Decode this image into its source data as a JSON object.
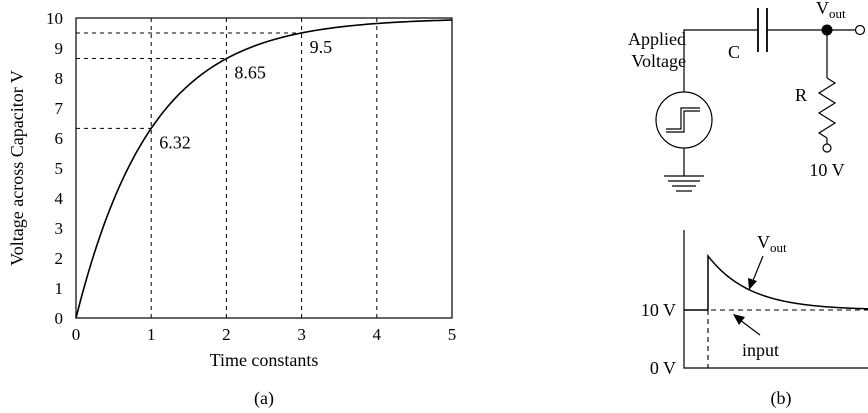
{
  "panel_a": {
    "caption": "(a)",
    "chart_data": {
      "type": "line",
      "xlabel": "Time constants",
      "ylabel": "Voltage across Capacitor V",
      "xlim": [
        0,
        5
      ],
      "ylim": [
        0,
        10
      ],
      "x_ticks": [
        "0",
        "1",
        "2",
        "3",
        "4",
        "5"
      ],
      "y_ticks": [
        "0",
        "1",
        "2",
        "3",
        "4",
        "5",
        "6",
        "7",
        "8",
        "9",
        "10"
      ],
      "grid": "dashed",
      "series": [
        {
          "function": "10*(1-exp(-t))",
          "x": [
            0,
            0.25,
            0.5,
            0.75,
            1,
            1.5,
            2,
            2.5,
            3,
            3.5,
            4,
            4.5,
            5
          ],
          "values": [
            0,
            2.21,
            3.93,
            5.28,
            6.32,
            7.77,
            8.65,
            9.18,
            9.5,
            9.7,
            9.82,
            9.89,
            9.93
          ]
        }
      ],
      "annotations": [
        {
          "text": "6.32",
          "x": 1,
          "y": 6.32
        },
        {
          "text": "8.65",
          "x": 2,
          "y": 8.65
        },
        {
          "text": "9.5",
          "x": 3,
          "y": 9.5
        }
      ]
    }
  },
  "panel_b": {
    "caption": "(b)",
    "circuit": {
      "source_label_line1": "Applied",
      "source_label_line2": "Voltage",
      "capacitor_label": "C",
      "resistor_label": "R",
      "output_label": "V",
      "output_label_sub": "out",
      "bias_label": "10 V"
    },
    "waveform": {
      "level_high": "10 V",
      "level_low": "0 V",
      "vout_label": "V",
      "vout_label_sub": "out",
      "input_label": "input"
    }
  }
}
